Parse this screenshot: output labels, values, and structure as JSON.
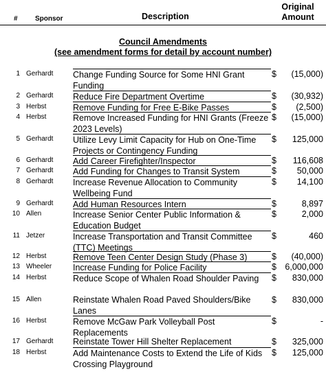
{
  "header": {
    "num": "#",
    "sponsor": "Sponsor",
    "description": "Description",
    "original_line1": "Original",
    "original_line2": "Amount"
  },
  "section": {
    "title": "Council Amendments",
    "subtitle": "(see amendment forms for detail by account number)"
  },
  "rows": [
    {
      "num": "1",
      "sponsor": "Gerhardt",
      "lines": [
        "Change Funding Source for Some HNI Grant",
        "Funding"
      ],
      "dollar": "$",
      "amount": "(15,000)"
    },
    {
      "num": "2",
      "sponsor": "Gerhardt",
      "lines": [
        "Reduce Fire Department Overtime"
      ],
      "dollar": "$",
      "amount": "(30,932)"
    },
    {
      "num": "3",
      "sponsor": "Herbst",
      "lines": [
        "Remove Funding for Free E-Bike Passes"
      ],
      "dollar": "$",
      "amount": "(2,500)"
    },
    {
      "num": "4",
      "sponsor": "Herbst",
      "lines": [
        "Remove Increased Funding for HNI Grants (Freeze",
        "2023 Levels)"
      ],
      "dollar": "$",
      "amount": "(15,000)"
    },
    {
      "num": "5",
      "sponsor": "Gerhardt",
      "lines": [
        "Utilize Levy Limit Capacity for Hub on One-Time",
        "Projects or Contingency Funding"
      ],
      "dollar": "$",
      "amount": "125,000"
    },
    {
      "num": "6",
      "sponsor": "Gerhardt",
      "lines": [
        "Add Career Firefighter/Inspector"
      ],
      "dollar": "$",
      "amount": "116,608"
    },
    {
      "num": "7",
      "sponsor": "Gerhardt",
      "lines": [
        "Add Funding for Changes to Transit System"
      ],
      "dollar": "$",
      "amount": "50,000"
    },
    {
      "num": "8",
      "sponsor": "Gerhardt",
      "lines": [
        "Increase Revenue Allocation to Community",
        "Wellbeing Fund"
      ],
      "dollar": "$",
      "amount": "14,100"
    },
    {
      "num": "9",
      "sponsor": "Gerhardt",
      "lines": [
        "Add Human Resources Intern"
      ],
      "dollar": "$",
      "amount": "8,897"
    },
    {
      "num": "10",
      "sponsor": "Allen",
      "lines": [
        "Increase Senior Center Public Information &",
        "Education Budget"
      ],
      "dollar": "$",
      "amount": "2,000"
    },
    {
      "num": "11",
      "sponsor": "Jetzer",
      "lines": [
        "Increase Transportation and Transit Committee",
        "(TTC) Meetings"
      ],
      "dollar": "$",
      "amount": "460"
    },
    {
      "num": "12",
      "sponsor": "Herbst",
      "lines": [
        "Remove Teen Center Design Study (Phase 3)"
      ],
      "dollar": "$",
      "amount": "(40,000)"
    },
    {
      "num": "13",
      "sponsor": "Wheeler",
      "lines": [
        "Increase Funding for Police Facility"
      ],
      "dollar": "$",
      "amount": "6,000,000"
    },
    {
      "num": "14",
      "sponsor": "Herbst",
      "lines": [
        "Reduce Scope of Whalen Road Shoulder Paving"
      ],
      "dollar": "$",
      "amount": "830,000"
    },
    {
      "num": "15",
      "sponsor": "Allen",
      "lines": [
        "Reinstate Whalen Road Paved Shoulders/Bike",
        "Lanes"
      ],
      "dollar": "$",
      "amount": "830,000"
    },
    {
      "num": "16",
      "sponsor": "Herbst",
      "lines": [
        "Remove McGaw Park Volleyball Post Replacements"
      ],
      "dollar": "$",
      "amount": "-"
    },
    {
      "num": "17",
      "sponsor": "Gerhardt",
      "lines": [
        "Reinstate Tower Hill Shelter Replacement"
      ],
      "dollar": "$",
      "amount": "325,000"
    },
    {
      "num": "18",
      "sponsor": "Herbst",
      "lines": [
        "Add Maintenance Costs to Extend the Life of Kids",
        "Crossing Playground"
      ],
      "dollar": "$",
      "amount": "125,000"
    }
  ]
}
